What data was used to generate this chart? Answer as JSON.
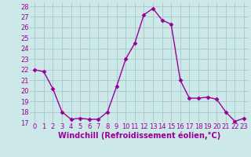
{
  "x": [
    0,
    1,
    2,
    3,
    4,
    5,
    6,
    7,
    8,
    9,
    10,
    11,
    12,
    13,
    14,
    15,
    16,
    17,
    18,
    19,
    20,
    21,
    22,
    23
  ],
  "y": [
    22.0,
    21.8,
    20.2,
    18.0,
    17.3,
    17.4,
    17.3,
    17.3,
    18.0,
    20.4,
    23.0,
    24.5,
    27.2,
    27.8,
    26.7,
    26.3,
    21.0,
    19.3,
    19.3,
    19.4,
    19.2,
    18.0,
    17.1,
    17.4
  ],
  "line_color": "#990099",
  "marker": "D",
  "marker_size": 2.5,
  "linewidth": 1.0,
  "bg_color": "#cce8e8",
  "grid_color": "#aacccc",
  "xlabel": "Windchill (Refroidissement éolien,°C)",
  "ylim": [
    17,
    28
  ],
  "xlim": [
    -0.5,
    23.5
  ],
  "yticks": [
    17,
    18,
    19,
    20,
    21,
    22,
    23,
    24,
    25,
    26,
    27,
    28
  ],
  "xticks": [
    0,
    1,
    2,
    3,
    4,
    5,
    6,
    7,
    8,
    9,
    10,
    11,
    12,
    13,
    14,
    15,
    16,
    17,
    18,
    19,
    20,
    21,
    22,
    23
  ],
  "xlabel_fontsize": 7.0,
  "tick_fontsize": 6.0,
  "tick_color": "#990099",
  "xlabel_color": "#990099"
}
